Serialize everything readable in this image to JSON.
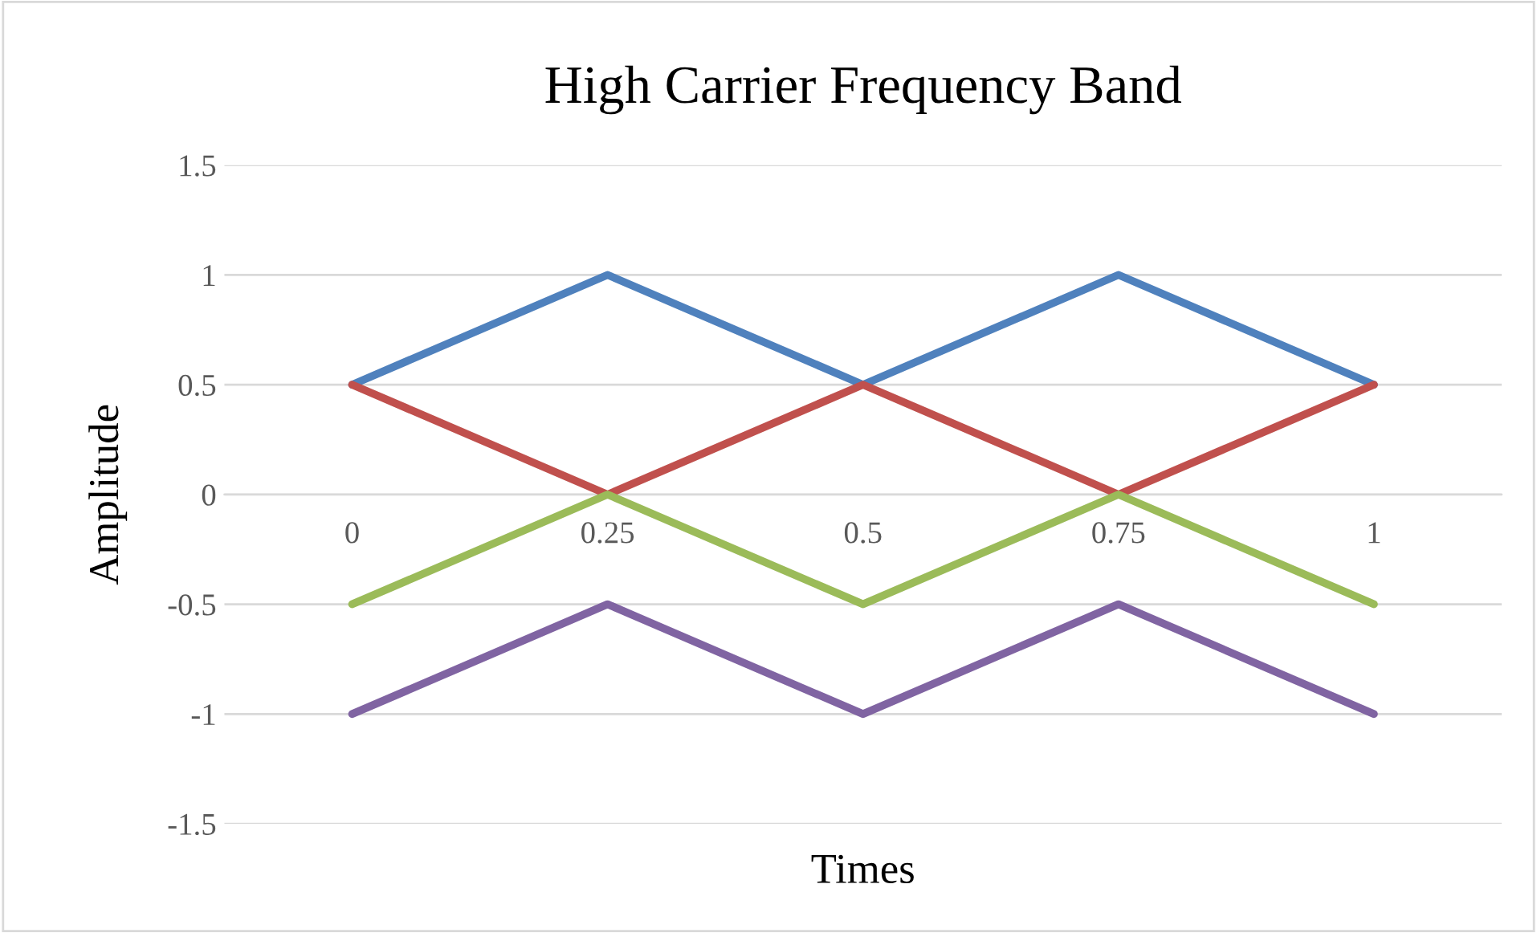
{
  "chart_data": {
    "type": "line",
    "title": "High Carrier Frequency Band",
    "xlabel": "Times",
    "ylabel": "Amplitude",
    "categories": [
      "0",
      "0.25",
      "0.5",
      "0.75",
      "1"
    ],
    "series": [
      {
        "color": "#4f81bd",
        "values": [
          0.5,
          1,
          0.5,
          1,
          0.5
        ]
      },
      {
        "color": "#c0504d",
        "values": [
          0.5,
          0,
          0.5,
          0,
          0.5
        ]
      },
      {
        "color": "#9bbb59",
        "values": [
          -0.5,
          0,
          -0.5,
          0,
          -0.5
        ]
      },
      {
        "color": "#8064a2",
        "values": [
          -1,
          -0.5,
          -1,
          -0.5,
          -1
        ]
      }
    ],
    "ylim": [
      -1.5,
      1.5
    ],
    "yticks": [
      -1.5,
      -1,
      -0.5,
      0,
      0.5,
      1,
      1.5
    ],
    "grid": "y",
    "marker": "none",
    "line_style": "solid"
  }
}
